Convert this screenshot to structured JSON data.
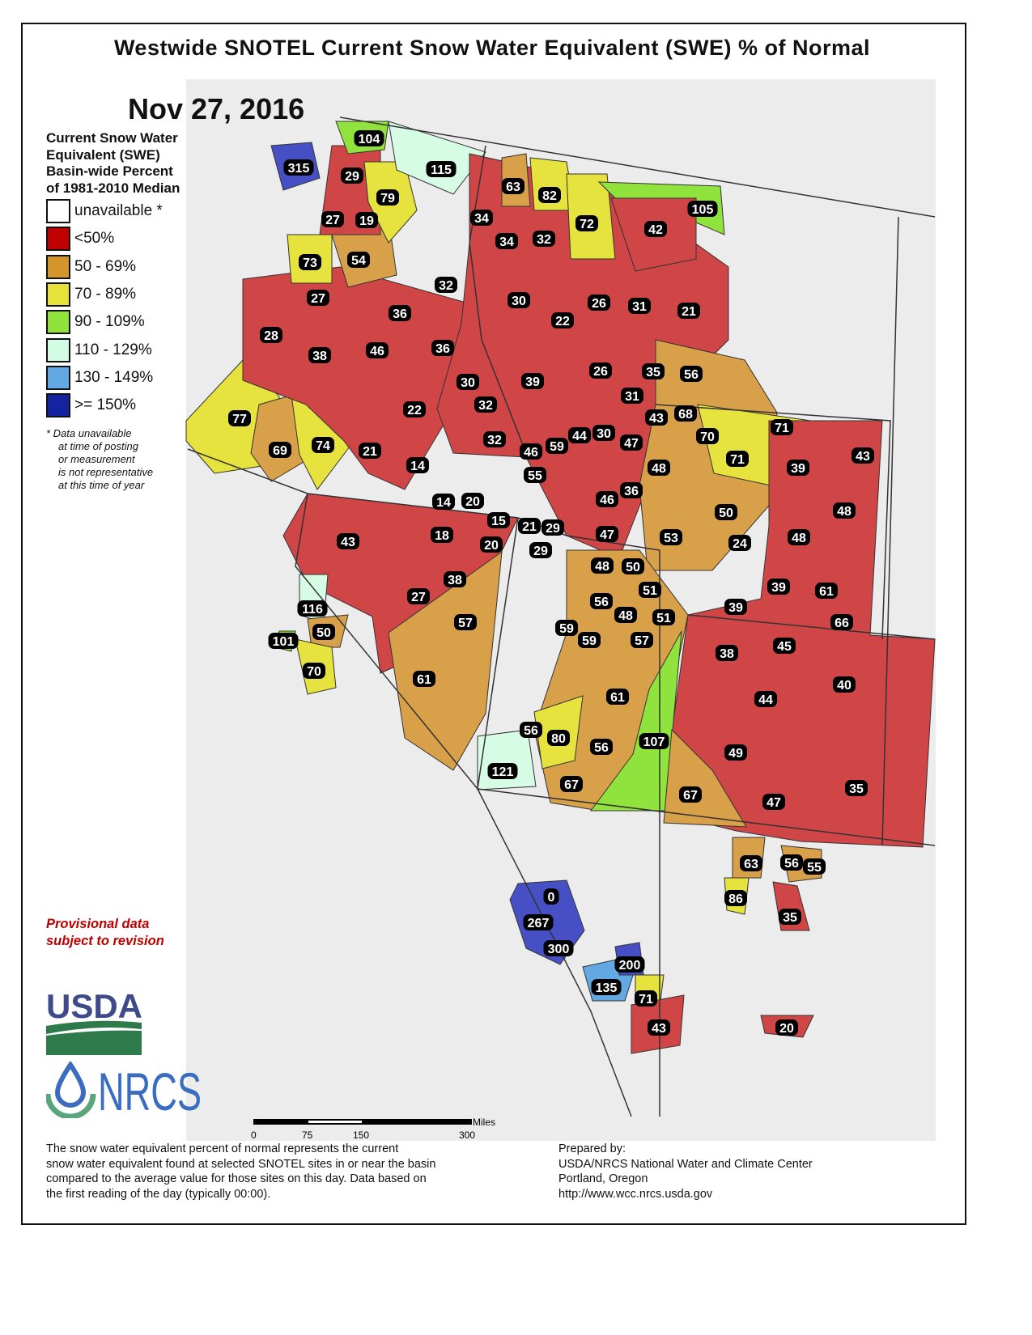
{
  "title": "Westwide SNOTEL Current Snow Water Equivalent (SWE) % of Normal",
  "date": "Nov 27, 2016",
  "legend": {
    "title_lines": [
      "Current Snow Water",
      "Equivalent (SWE)",
      "Basin-wide Percent",
      "of 1981-2010 Median"
    ],
    "items": [
      {
        "label": "unavailable *",
        "color": "#ffffff"
      },
      {
        "label": "<50%",
        "color": "#c00000"
      },
      {
        "label": "50 - 69%",
        "color": "#d4952a"
      },
      {
        "label": "70 - 89%",
        "color": "#e6e23a"
      },
      {
        "label": "90 - 109%",
        "color": "#8fe33a"
      },
      {
        "label": "110 - 129%",
        "color": "#d2fde4"
      },
      {
        "label": "130 - 149%",
        "color": "#62a8e2"
      },
      {
        "label": ">= 150%",
        "color": "#1424a0"
      }
    ],
    "note_lines": [
      "*  Data unavailable",
      "at time of posting",
      "or measurement",
      "is not representative",
      "at this time of year"
    ]
  },
  "provisional": [
    "Provisional data",
    "subject to revision"
  ],
  "logos": {
    "usda": "USDA",
    "nrcs": "NRCS"
  },
  "scale": {
    "unit": "Miles",
    "ticks": [
      "0",
      "75",
      "150",
      "300"
    ]
  },
  "description": [
    "The snow water equivalent percent of normal represents the current",
    "snow water equivalent found at selected SNOTEL sites in or near the basin",
    "compared to the average value for those sites on this day. Data based on",
    "the first reading of the day (typically 00:00)."
  ],
  "prepared": [
    "Prepared by:",
    "USDA/NRCS National Water and Climate Center",
    "Portland, Oregon",
    "http://www.wcc.nrcs.usda.gov"
  ],
  "basin_values": [
    315,
    104,
    115,
    29,
    79,
    63,
    82,
    72,
    105,
    42,
    34,
    27,
    19,
    34,
    32,
    73,
    54,
    32,
    27,
    30,
    26,
    31,
    21,
    22,
    36,
    28,
    38,
    46,
    36,
    26,
    35,
    56,
    39,
    30,
    32,
    31,
    22,
    68,
    43,
    71,
    77,
    70,
    44,
    30,
    47,
    32,
    59,
    46,
    69,
    74,
    21,
    71,
    39,
    43,
    55,
    14,
    48,
    36,
    46,
    14,
    20,
    15,
    48,
    50,
    21,
    29,
    47,
    53,
    24,
    48,
    43,
    18,
    20,
    29,
    48,
    50,
    39,
    61,
    51,
    38,
    27,
    56,
    48,
    51,
    39,
    66,
    116,
    57,
    59,
    50,
    101,
    59,
    57,
    38,
    45,
    40,
    70,
    44,
    61,
    61,
    56,
    80,
    107,
    56,
    49,
    121,
    67,
    35,
    67,
    47,
    63,
    56,
    55,
    86,
    0,
    35,
    267,
    300,
    200,
    135,
    71,
    43,
    20
  ]
}
